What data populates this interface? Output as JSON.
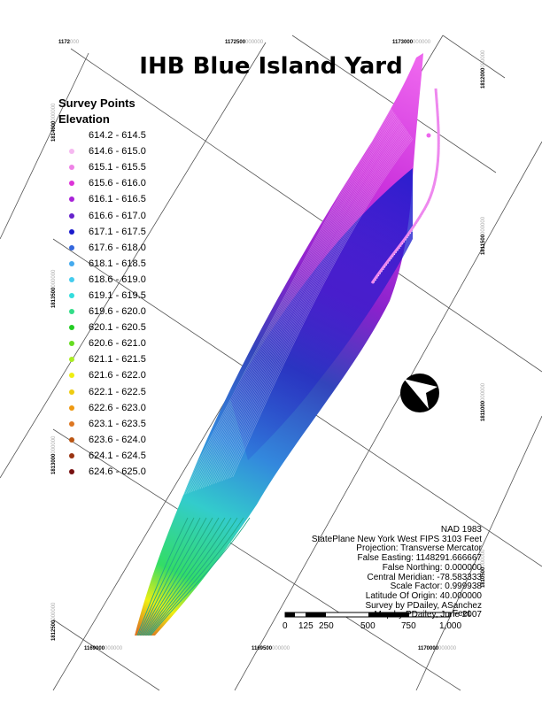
{
  "title": "IHB Blue Island Yard",
  "legend": {
    "heading_1": "Survey Points",
    "heading_2": "Elevation",
    "classes": [
      {
        "label": "614.2 - 614.5",
        "color": "#ffffff"
      },
      {
        "label": "614.6 - 615.0",
        "color": "#f5b8f0"
      },
      {
        "label": "615.1 - 615.5",
        "color": "#ee82e6"
      },
      {
        "label": "615.6 - 616.0",
        "color": "#dd33d8"
      },
      {
        "label": "616.1 - 616.5",
        "color": "#a822d8"
      },
      {
        "label": "616.6 - 617.0",
        "color": "#6622cc"
      },
      {
        "label": "617.1 - 617.5",
        "color": "#1a1acc"
      },
      {
        "label": "617.6 - 618.0",
        "color": "#3366dd"
      },
      {
        "label": "618.1 - 618.5",
        "color": "#44aaee"
      },
      {
        "label": "618.6 - 619.0",
        "color": "#44ccee"
      },
      {
        "label": "619.1 - 619.5",
        "color": "#33dddd"
      },
      {
        "label": "619.6 - 620.0",
        "color": "#33dd88"
      },
      {
        "label": "620.1 - 620.5",
        "color": "#22cc22"
      },
      {
        "label": "620.6 - 621.0",
        "color": "#66dd22"
      },
      {
        "label": "621.1 - 621.5",
        "color": "#aaee22"
      },
      {
        "label": "621.6 - 622.0",
        "color": "#eeee11"
      },
      {
        "label": "622.1 - 622.5",
        "color": "#eecc11"
      },
      {
        "label": "622.6 - 623.0",
        "color": "#ee9911"
      },
      {
        "label": "623.1 - 623.5",
        "color": "#dd7722"
      },
      {
        "label": "623.6 - 624.0",
        "color": "#bb5511"
      },
      {
        "label": "624.1 - 624.5",
        "color": "#993311"
      },
      {
        "label": "624.6 - 625.0",
        "color": "#771111"
      }
    ]
  },
  "info_lines": [
    "NAD 1983",
    "StatePlane New York West FIPS 3103 Feet",
    "Projection: Transverse Mercator",
    "False Easting: 1148291.666667",
    "False Northing: 0.000000",
    "Central Meridian: -78.583333",
    "Scale Factor: 0.999938",
    "Latitude Of Origin: 40.000000",
    "Survey by PDailey, ASanchez",
    "Map by PDailey, June 2007"
  ],
  "scale_bar": {
    "unit": "Feet",
    "labels": [
      "0",
      "125",
      "250",
      "500",
      "750",
      "1,000"
    ]
  },
  "grid_labels": {
    "top": [
      {
        "major": "1172",
        "minor": "000"
      },
      {
        "major": "1172500",
        "minor": "000000"
      },
      {
        "major": "1173000",
        "minor": "000000"
      }
    ],
    "bottom": [
      {
        "major": "1169000",
        "minor": "000000"
      },
      {
        "major": "1169500",
        "minor": "000000"
      },
      {
        "major": "1170000",
        "minor": "000000"
      }
    ],
    "left": [
      {
        "major": "1814000",
        "minor": "000000"
      },
      {
        "major": "1813500",
        "minor": "000000"
      },
      {
        "major": "1813000",
        "minor": "000000"
      },
      {
        "major": "1812500",
        "minor": "000000"
      }
    ],
    "right": [
      {
        "major": "1812000",
        "minor": "000000"
      },
      {
        "major": "1811500",
        "minor": "000000"
      },
      {
        "major": "1811000",
        "minor": "000000"
      },
      {
        "major": "1810500",
        "minor": "000000"
      }
    ]
  },
  "colors": {
    "grid": "#555555",
    "north_arrow": "#000000"
  }
}
